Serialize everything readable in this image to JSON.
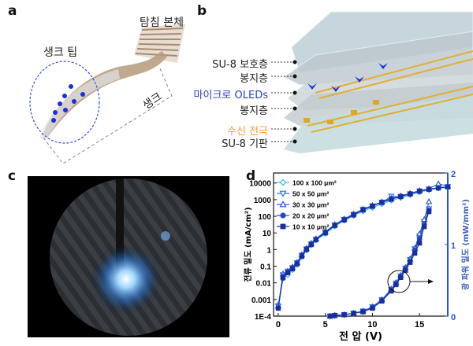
{
  "panels": {
    "a": {
      "label": "a",
      "probe_body": "탐침 본체",
      "shank_tip": "생크 팁",
      "shank": "생크"
    },
    "b": {
      "label": "b",
      "layers": [
        {
          "text": "SU-8 보호층",
          "color": "#222222"
        },
        {
          "text": "봉지층",
          "color": "#222222"
        },
        {
          "text": "마이크로 OLEDs",
          "color": "#2b3bd6"
        },
        {
          "text": "봉지층",
          "color": "#222222"
        },
        {
          "text": "수신 전극",
          "color": "#f39a2b"
        },
        {
          "text": "SU-8 기판",
          "color": "#222222"
        }
      ]
    },
    "c": {
      "label": "c"
    },
    "d": {
      "label": "d"
    }
  },
  "chart_data": {
    "type": "line",
    "xlabel": "전 압 (V)",
    "ylabel": "전류 밀도 (mA/cm²)",
    "y2label": "광 파워 밀도 (mW/mm²)",
    "xlim": [
      -0.5,
      18
    ],
    "ylim": [
      0.0001,
      40000
    ],
    "yscale": "log",
    "y2lim": [
      0,
      2
    ],
    "xticks": [
      "0",
      "5",
      "10",
      "15"
    ],
    "yticks": [
      "1E-4",
      "0.001",
      "0.01",
      "0.1",
      "1",
      "10",
      "100",
      "1000",
      "10000"
    ],
    "y2ticks": [
      "0",
      "1",
      "2"
    ],
    "legend_position": "top-left",
    "x_current": [
      0,
      0.5,
      1,
      1.5,
      2,
      2.5,
      3,
      3.5,
      4,
      5,
      6,
      7,
      8,
      9,
      10,
      11,
      12,
      13,
      14,
      15,
      16,
      17,
      18
    ],
    "x_power": [
      5.5,
      6,
      7,
      8,
      9,
      10,
      11,
      12,
      12.5,
      13,
      13.5,
      14,
      14.5,
      15,
      15.5,
      16
    ],
    "series": [
      {
        "name": "100 x 100 μm²",
        "marker": "diamond",
        "color": "#35b6f2",
        "current": [
          0.0005,
          0.018,
          0.03,
          0.06,
          0.12,
          0.35,
          0.9,
          1.8,
          3.5,
          9,
          25,
          55,
          110,
          200,
          330,
          550,
          900,
          1300,
          1900,
          2800,
          3800,
          4800,
          5500
        ],
        "power": [
          0,
          0.005,
          0.02,
          0.04,
          0.06,
          0.12,
          0.22,
          0.36,
          0.45,
          0.55,
          0.66,
          0.78,
          0.93,
          1.1,
          1.3,
          1.5
        ]
      },
      {
        "name": "50 x 50 μm²",
        "marker": "triangle-down",
        "color": "#2d6fe3",
        "current": [
          0.0004,
          0.03,
          0.05,
          0.08,
          0.16,
          0.45,
          1.1,
          2.2,
          4,
          11,
          30,
          65,
          130,
          260,
          420,
          700,
          1600,
          1500,
          2200,
          3300,
          4300,
          5200,
          6000
        ],
        "power": [
          0,
          0.008,
          0.02,
          0.04,
          0.07,
          0.13,
          0.23,
          0.37,
          0.46,
          0.56,
          0.67,
          0.79,
          0.94,
          1.12,
          1.32,
          1.5
        ]
      },
      {
        "name": "30 x 30 μm²",
        "marker": "triangle-up",
        "color": "#2a55d9",
        "current": [
          0.0004,
          0.035,
          0.05,
          0.09,
          0.17,
          0.5,
          1.2,
          2.4,
          4.5,
          12,
          32,
          70,
          140,
          270,
          450,
          750,
          1200,
          1700,
          2400,
          3500,
          4500,
          9000,
          6500
        ],
        "power": [
          0,
          0.01,
          0.02,
          0.04,
          0.07,
          0.13,
          0.23,
          0.38,
          0.47,
          0.57,
          0.68,
          0.8,
          0.95,
          1.15,
          1.35,
          1.6
        ]
      },
      {
        "name": "20 x 20 μm²",
        "marker": "circle",
        "color": "#2447c2",
        "current": [
          0.0003,
          0.025,
          0.045,
          0.08,
          0.15,
          0.45,
          1.1,
          2.2,
          4.2,
          11,
          30,
          65,
          130,
          250,
          420,
          700,
          1100,
          1600,
          2300,
          3300,
          4300,
          5200,
          6000
        ],
        "power": [
          0,
          0.01,
          0.02,
          0.04,
          0.07,
          0.12,
          0.22,
          0.36,
          0.45,
          0.55,
          0.66,
          0.77,
          0.92,
          1.08,
          1.28,
          1.48
        ]
      },
      {
        "name": "10 x 10 μm²",
        "marker": "square",
        "color": "#1b2f9c",
        "current": [
          0.0003,
          0.02,
          0.04,
          0.07,
          0.14,
          0.4,
          1,
          2,
          4,
          10,
          28,
          60,
          120,
          240,
          400,
          680,
          1050,
          1550,
          2200,
          3200,
          4200,
          5000,
          5800
        ],
        "power": [
          0,
          0.01,
          0.02,
          0.04,
          0.06,
          0.11,
          0.21,
          0.35,
          0.44,
          0.54,
          0.64,
          0.75,
          0.88,
          1.02,
          1.25,
          1.46
        ]
      }
    ]
  }
}
